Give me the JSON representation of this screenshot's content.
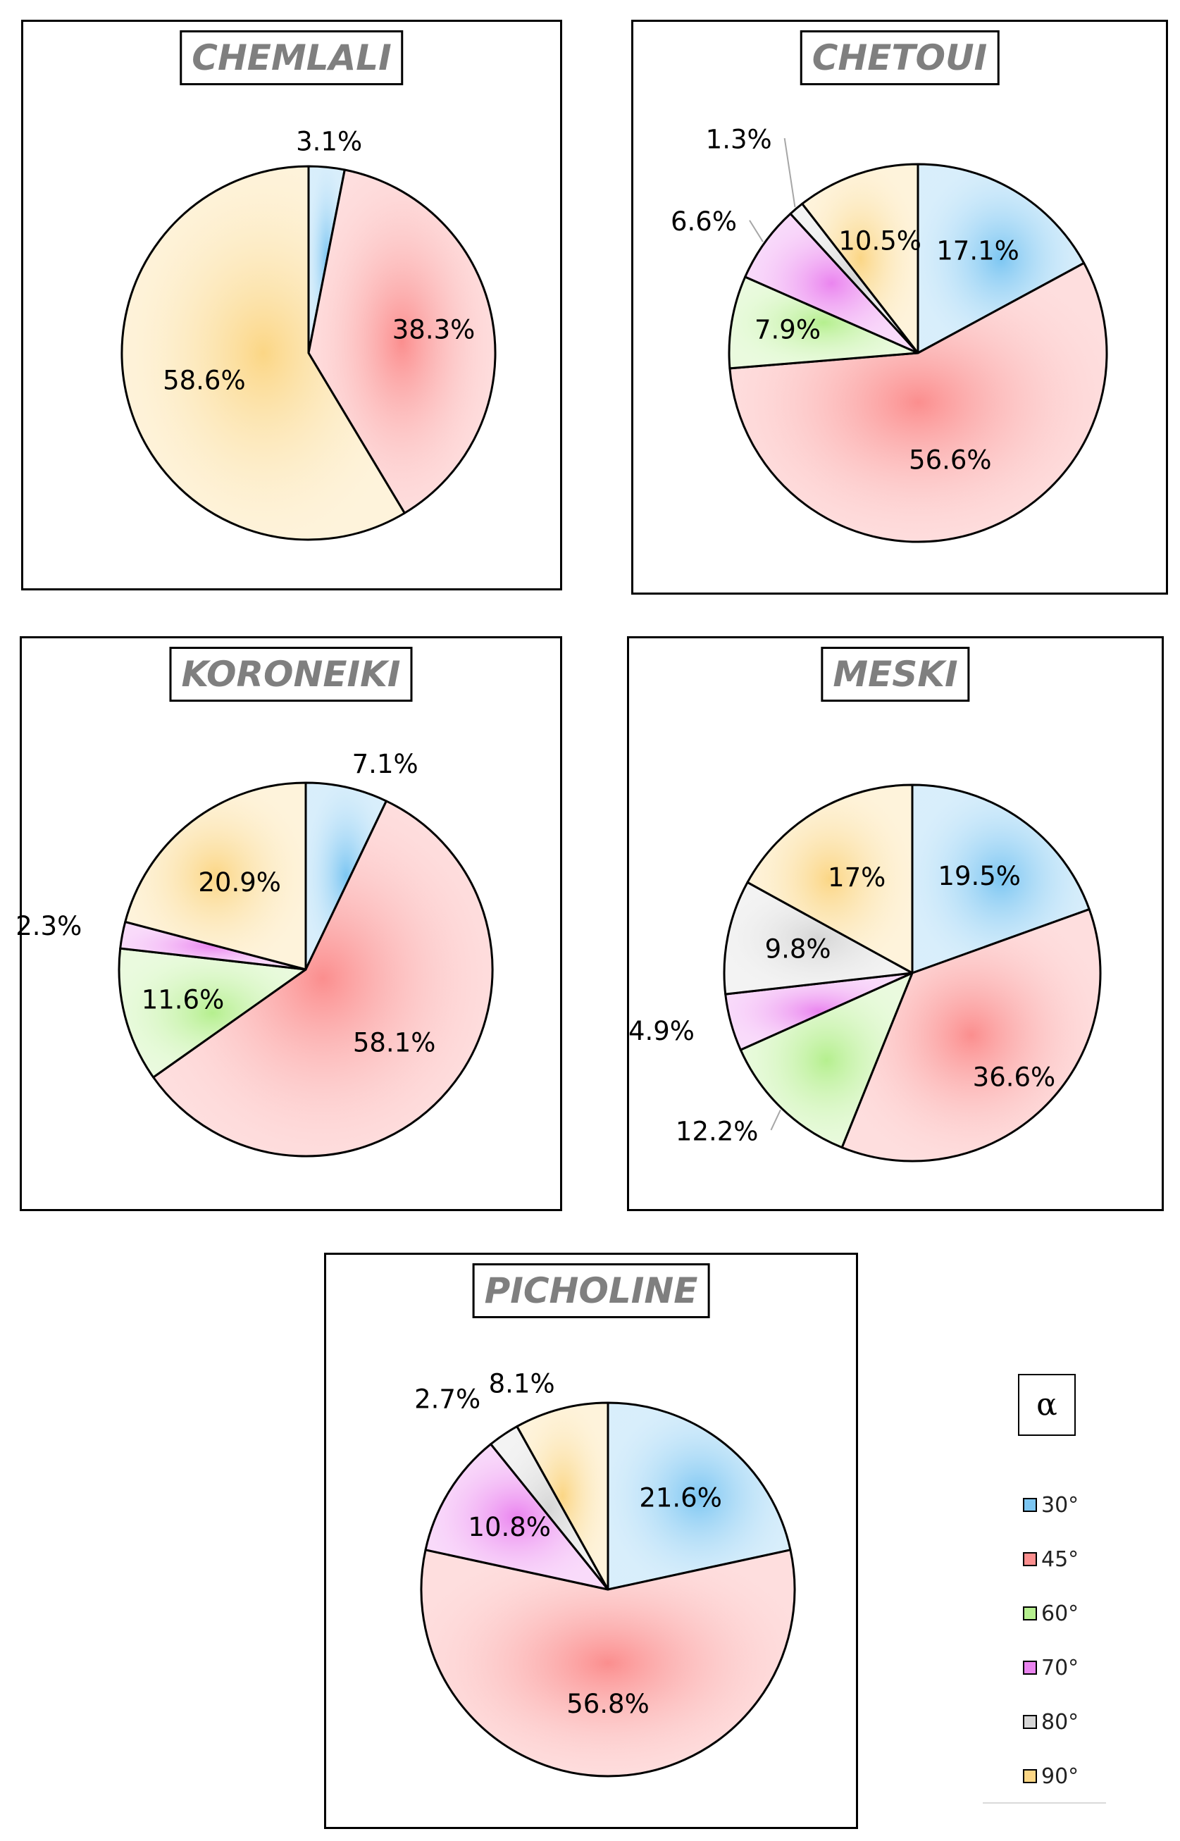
{
  "legend": {
    "title": "α",
    "items": [
      {
        "label": "30°",
        "color": "#7cc6f2"
      },
      {
        "label": "45°",
        "color": "#fb8e8e"
      },
      {
        "label": "60°",
        "color": "#b5ef8e"
      },
      {
        "label": "70°",
        "color": "#ea84ef"
      },
      {
        "label": "80°",
        "color": "#d6d6d6"
      },
      {
        "label": "90°",
        "color": "#fbd685"
      }
    ]
  },
  "chart_data": [
    {
      "type": "pie",
      "title": "CHEMLALI",
      "slices": [
        {
          "category": "30°",
          "value": 3.1,
          "label": "3.1%"
        },
        {
          "category": "45°",
          "value": 38.3,
          "label": "38.3%"
        },
        {
          "category": "90°",
          "value": 58.6,
          "label": "58.6%"
        }
      ]
    },
    {
      "type": "pie",
      "title": "CHETOUI",
      "slices": [
        {
          "category": "30°",
          "value": 17.1,
          "label": "17.1%"
        },
        {
          "category": "45°",
          "value": 56.6,
          "label": "56.6%"
        },
        {
          "category": "60°",
          "value": 7.9,
          "label": "7.9%"
        },
        {
          "category": "70°",
          "value": 6.6,
          "label": "6.6%"
        },
        {
          "category": "80°",
          "value": 1.3,
          "label": "1.3%"
        },
        {
          "category": "90°",
          "value": 10.5,
          "label": "10.5%"
        }
      ]
    },
    {
      "type": "pie",
      "title": "KORONEIKI",
      "slices": [
        {
          "category": "30°",
          "value": 7.1,
          "label": "7.1%"
        },
        {
          "category": "45°",
          "value": 58.1,
          "label": "58.1%"
        },
        {
          "category": "60°",
          "value": 11.6,
          "label": "11.6%"
        },
        {
          "category": "70°",
          "value": 2.3,
          "label": "2.3%"
        },
        {
          "category": "90°",
          "value": 20.9,
          "label": "20.9%"
        }
      ]
    },
    {
      "type": "pie",
      "title": "MESKI",
      "slices": [
        {
          "category": "30°",
          "value": 19.5,
          "label": "19.5%"
        },
        {
          "category": "45°",
          "value": 36.6,
          "label": "36.6%"
        },
        {
          "category": "60°",
          "value": 12.2,
          "label": "12.2%"
        },
        {
          "category": "70°",
          "value": 4.9,
          "label": "4.9%"
        },
        {
          "category": "80°",
          "value": 9.8,
          "label": "9.8%"
        },
        {
          "category": "90°",
          "value": 17,
          "label": "17%"
        }
      ]
    },
    {
      "type": "pie",
      "title": "PICHOLINE",
      "slices": [
        {
          "category": "30°",
          "value": 21.6,
          "label": "21.6%"
        },
        {
          "category": "45°",
          "value": 56.8,
          "label": "56.8%"
        },
        {
          "category": "70°",
          "value": 10.8,
          "label": "10.8%"
        },
        {
          "category": "80°",
          "value": 2.7,
          "label": "2.7%"
        },
        {
          "category": "90°",
          "value": 8.1,
          "label": "8.1%"
        }
      ]
    }
  ]
}
